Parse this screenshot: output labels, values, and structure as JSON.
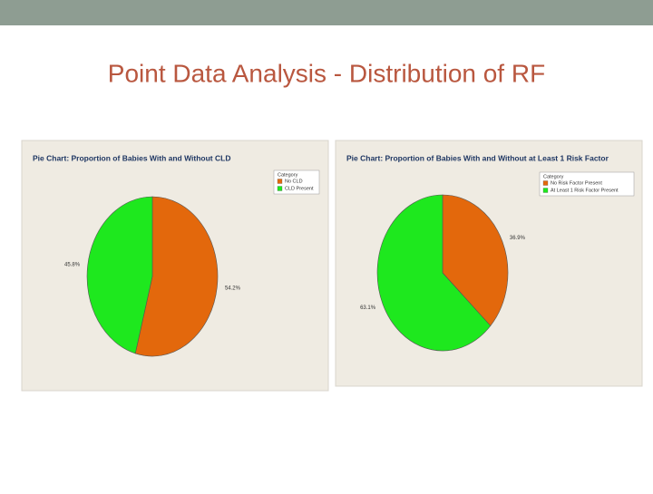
{
  "slide_title": "Point Data Analysis - Distribution of RF",
  "chart_data": [
    {
      "type": "pie",
      "title": "Pie Chart: Proportion of Babies With and Without CLD",
      "legend_title": "Category",
      "categories": [
        "No CLD",
        "CLD Present"
      ],
      "values": [
        54.2,
        45.8
      ],
      "value_labels": [
        "54.2%",
        "45.8%"
      ],
      "colors": [
        "#e3680c",
        "#1ee81e"
      ]
    },
    {
      "type": "pie",
      "title": "Pie Chart: Proportion of Babies With and Without at Least 1 Risk Factor",
      "legend_title": "Category",
      "categories": [
        "No Risk Factor Present",
        "At Least 1 Risk Factor Present"
      ],
      "values": [
        36.9,
        63.1
      ],
      "value_labels": [
        "36.9%",
        "63.1%"
      ],
      "colors": [
        "#e3680c",
        "#1ee81e"
      ]
    }
  ]
}
